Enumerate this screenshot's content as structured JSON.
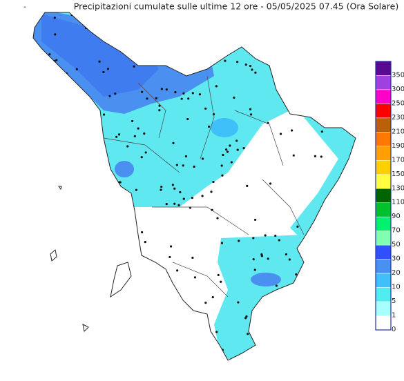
{
  "marker": "-",
  "title": "Precipitazioni cumulate sulle ultime 12 ore - 05/05/2025 07.45 (Ora Solare)",
  "legend": {
    "items": [
      {
        "label": 350,
        "color": "#5a0a90"
      },
      {
        "label": 300,
        "color": "#a040e0"
      },
      {
        "label": 250,
        "color": "#ff00c8"
      },
      {
        "label": 230,
        "color": "#ff0000"
      },
      {
        "label": 210,
        "color": "#b8600a"
      },
      {
        "label": 190,
        "color": "#ff7800"
      },
      {
        "label": 170,
        "color": "#ffa000"
      },
      {
        "label": 150,
        "color": "#ffd000"
      },
      {
        "label": 130,
        "color": "#ffff40"
      },
      {
        "label": 110,
        "color": "#006400"
      },
      {
        "label": 90,
        "color": "#00c030"
      },
      {
        "label": 70,
        "color": "#00f070"
      },
      {
        "label": 50,
        "color": "#80ffb0"
      },
      {
        "label": 30,
        "color": "#3050ff"
      },
      {
        "label": 20,
        "color": "#4a90f0"
      },
      {
        "label": 10,
        "color": "#40c0f8"
      },
      {
        "label": 5,
        "color": "#50ecf0"
      },
      {
        "label": 1,
        "color": "#a8ffff"
      },
      {
        "label": 0,
        "color": "#ffffff"
      }
    ]
  }
}
